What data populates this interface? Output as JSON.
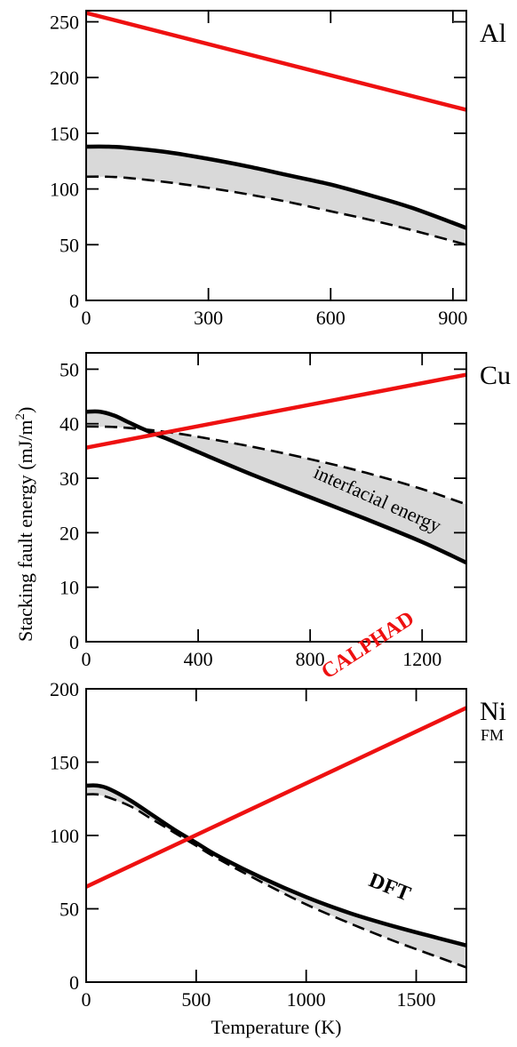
{
  "ylabel": "Stacking fault energy (mJ/m",
  "ylabel_sup": "2",
  "ylabel_close": ")",
  "xlabel": "Temperature (K)",
  "colors": {
    "calphad": "#ee1111",
    "dft": "#000000",
    "band": "#d9d9d9"
  },
  "chart_data": [
    {
      "type": "line",
      "element": "Al",
      "sublabel": "",
      "xlim": [
        0,
        933
      ],
      "ylim": [
        0,
        260
      ],
      "xticks": [
        0,
        300,
        600,
        900
      ],
      "yticks": [
        0,
        50,
        100,
        150,
        200,
        250
      ],
      "grid": false,
      "series": [
        {
          "name": "CALPHAD",
          "style": "red-solid",
          "x": [
            0,
            933
          ],
          "y": [
            258,
            171
          ]
        },
        {
          "name": "DFT",
          "style": "black-solid",
          "x": [
            0,
            50,
            100,
            200,
            300,
            400,
            500,
            600,
            700,
            800,
            933
          ],
          "y": [
            138,
            138,
            137,
            133,
            127,
            120,
            112,
            104,
            94,
            83,
            65
          ]
        },
        {
          "name": "",
          "style": "black-dashed",
          "x": [
            0,
            50,
            100,
            200,
            300,
            400,
            500,
            600,
            700,
            800,
            933
          ],
          "y": [
            111,
            111,
            110,
            106,
            101,
            95,
            88,
            80,
            72,
            63,
            50
          ]
        }
      ],
      "annotations": []
    },
    {
      "type": "line",
      "element": "Cu",
      "sublabel": "",
      "xlim": [
        0,
        1358
      ],
      "ylim": [
        0,
        53
      ],
      "xticks": [
        0,
        400,
        800,
        1200
      ],
      "yticks": [
        0,
        10,
        20,
        30,
        40,
        50
      ],
      "grid": false,
      "series": [
        {
          "name": "CALPHAD",
          "style": "red-solid",
          "x": [
            0,
            1358
          ],
          "y": [
            35.6,
            49
          ]
        },
        {
          "name": "DFT",
          "style": "black-solid",
          "x": [
            0,
            50,
            100,
            150,
            200,
            250,
            300,
            400,
            600,
            800,
            1000,
            1200,
            1358
          ],
          "y": [
            42.2,
            42.2,
            41.5,
            40.3,
            39.1,
            38,
            37,
            34.8,
            30.5,
            26.5,
            22.5,
            18.3,
            14.5
          ]
        },
        {
          "name": "",
          "style": "black-dashed",
          "x": [
            0,
            100,
            200,
            300,
            400,
            600,
            800,
            1000,
            1200,
            1358
          ],
          "y": [
            39.5,
            39.4,
            39,
            38.4,
            37.6,
            35.7,
            33.5,
            31,
            28,
            25.2
          ]
        }
      ],
      "annotations": [
        {
          "text": "interfacial energy"
        }
      ]
    },
    {
      "type": "line",
      "element": "Ni",
      "sublabel": "FM",
      "xlim": [
        0,
        1728
      ],
      "ylim": [
        0,
        200
      ],
      "xticks": [
        0,
        500,
        1000,
        1500
      ],
      "yticks": [
        0,
        50,
        100,
        150,
        200
      ],
      "grid": false,
      "series": [
        {
          "name": "CALPHAD",
          "style": "red-solid",
          "x": [
            0,
            1728
          ],
          "y": [
            65,
            187
          ]
        },
        {
          "name": "DFT",
          "style": "black-solid",
          "x": [
            0,
            50,
            100,
            200,
            300,
            400,
            500,
            600,
            800,
            1000,
            1200,
            1400,
            1600,
            1728
          ],
          "y": [
            134,
            134,
            132,
            124,
            114,
            104,
            95,
            86,
            71,
            58,
            47,
            38,
            30,
            25
          ]
        },
        {
          "name": "",
          "style": "black-dashed",
          "x": [
            0,
            50,
            100,
            200,
            300,
            400,
            500,
            600,
            800,
            1000,
            1200,
            1400,
            1600,
            1728
          ],
          "y": [
            128,
            128,
            126,
            120,
            111,
            102,
            93,
            84,
            68,
            53,
            40,
            28,
            17,
            10
          ]
        }
      ],
      "annotations": [
        {
          "text": "CALPHAD"
        },
        {
          "text": "DFT"
        }
      ]
    }
  ]
}
